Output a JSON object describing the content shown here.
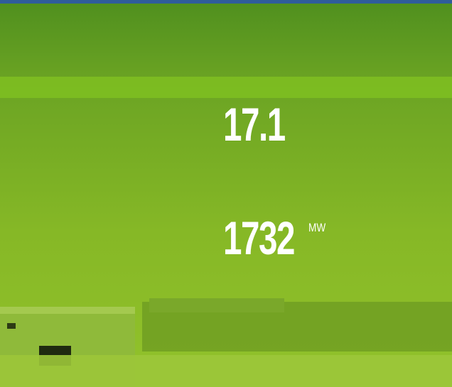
{
  "stats": [
    {
      "value": 17.1
    },
    {
      "value": 1732,
      "unit": "MW"
    }
  ]
}
